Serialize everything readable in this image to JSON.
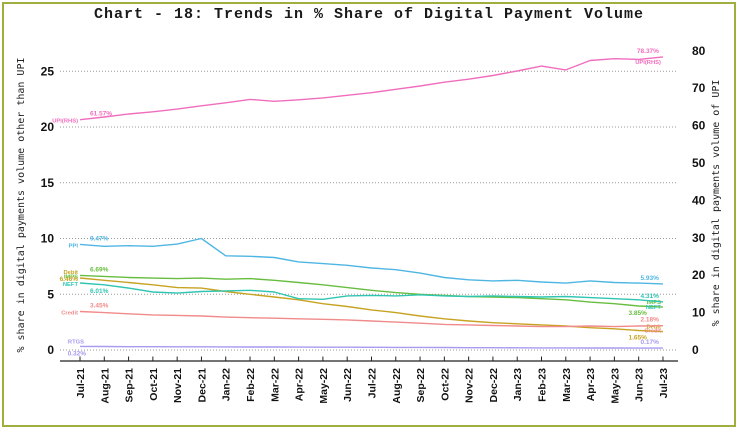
{
  "title": "Chart - 18: Trends in % Share of Digital Payment Volume",
  "left_axis": {
    "label": "% share in digital payments volume other than UPI",
    "ticks": [
      0,
      5,
      10,
      15,
      20,
      25
    ]
  },
  "right_axis": {
    "label": "% share in digital payments volume of UPI",
    "ticks": [
      0,
      10,
      20,
      30,
      40,
      50,
      60,
      70,
      80
    ]
  },
  "colors": {
    "frame_border": "#9fae3d",
    "grid": "#999999",
    "axis": "#222222"
  },
  "chart_data": {
    "type": "line",
    "title": "Chart - 18: Trends in % Share of Digital Payment Volume",
    "grid": "horizontal-dotted",
    "legend_position": "inline-end-labels",
    "left_ylim": [
      0,
      27
    ],
    "right_ylim": [
      0,
      85
    ],
    "x": [
      "Jul-21",
      "Aug-21",
      "Sep-21",
      "Oct-21",
      "Nov-21",
      "Dec-21",
      "Jan-22",
      "Feb-22",
      "Mar-22",
      "Apr-22",
      "May-22",
      "Jun-22",
      "Jul-22",
      "Aug-22",
      "Sep-22",
      "Oct-22",
      "Nov-22",
      "Dec-22",
      "Jan-23",
      "Feb-23",
      "Mar-23",
      "Apr-23",
      "May-23",
      "Jun-23",
      "Jul-23"
    ],
    "series": [
      {
        "name": "UPI(RHS)",
        "axis": "right",
        "color": "#f06ebe",
        "start_label": "61.57%",
        "end_label": "78.37%",
        "start_name": "UPI(RHS)",
        "end_name": "UPI(RHS)",
        "start_layout": "value-above-name-left",
        "end_layout": "value-above-name-below",
        "values": [
          61.57,
          62.3,
          63.1,
          63.7,
          64.4,
          65.3,
          66.1,
          67.0,
          66.5,
          66.9,
          67.4,
          68.1,
          68.8,
          69.7,
          70.6,
          71.6,
          72.4,
          73.4,
          74.6,
          75.9,
          74.9,
          77.4,
          77.9,
          77.7,
          78.37
        ]
      },
      {
        "name": "PPI",
        "axis": "left",
        "color": "#4fb6e3",
        "start_label": "9.47%",
        "end_label": "5.93%",
        "start_name": "PPI",
        "end_name": "",
        "start_layout": "value-above-name-left",
        "end_layout": "value-only",
        "values": [
          9.47,
          9.3,
          9.35,
          9.3,
          9.5,
          10.0,
          8.45,
          8.4,
          8.3,
          7.9,
          7.75,
          7.6,
          7.35,
          7.2,
          6.9,
          6.5,
          6.3,
          6.2,
          6.25,
          6.1,
          6.0,
          6.2,
          6.05,
          6.0,
          5.93
        ]
      },
      {
        "name": "IMPS",
        "axis": "left",
        "color": "#67bd3f",
        "start_label": "6.69%",
        "end_label": "3.85%",
        "start_name": "IMPS",
        "end_name": "IMPS",
        "start_layout": "value-above-name-left",
        "end_layout": "name-above-value-below",
        "values": [
          6.69,
          6.6,
          6.5,
          6.45,
          6.4,
          6.45,
          6.35,
          6.4,
          6.25,
          6.05,
          5.85,
          5.6,
          5.35,
          5.15,
          5.0,
          4.9,
          4.8,
          4.75,
          4.7,
          4.6,
          4.5,
          4.3,
          4.15,
          3.95,
          3.85
        ]
      },
      {
        "name": "Debit",
        "axis": "left",
        "color": "#c7a322",
        "start_label": "6.46%",
        "end_label": "1.65%",
        "start_name": "Debit",
        "end_name": "Debit",
        "start_layout": "value-left",
        "end_layout": "name-above-value-below",
        "values": [
          6.46,
          6.25,
          6.05,
          5.85,
          5.6,
          5.55,
          5.25,
          5.0,
          4.75,
          4.5,
          4.15,
          3.9,
          3.6,
          3.35,
          3.05,
          2.8,
          2.6,
          2.45,
          2.35,
          2.25,
          2.15,
          2.0,
          1.9,
          1.75,
          1.65
        ]
      },
      {
        "name": "NEFT",
        "axis": "left",
        "color": "#2fc5b2",
        "start_label": "6.01%",
        "end_label": "4.31%",
        "start_name": "NEFT",
        "end_name": "NEFT",
        "start_layout": "name-left-value-below",
        "end_layout": "value-above-name-below",
        "values": [
          6.01,
          5.85,
          5.55,
          5.2,
          5.1,
          5.25,
          5.3,
          5.35,
          5.2,
          4.6,
          4.55,
          4.85,
          4.9,
          4.85,
          4.95,
          4.85,
          4.8,
          4.85,
          4.8,
          4.75,
          4.8,
          4.7,
          4.6,
          4.5,
          4.31
        ]
      },
      {
        "name": "Credit",
        "axis": "left",
        "color": "#f18a8a",
        "start_label": "3.45%",
        "end_label": "2.18%",
        "start_name": "Credit",
        "end_name": "Credit",
        "start_layout": "value-above-name-left",
        "end_layout": "value-above-name-below",
        "values": [
          3.45,
          3.35,
          3.25,
          3.15,
          3.1,
          3.05,
          2.95,
          2.9,
          2.85,
          2.8,
          2.75,
          2.7,
          2.6,
          2.5,
          2.4,
          2.3,
          2.25,
          2.2,
          2.15,
          2.1,
          2.1,
          2.15,
          2.1,
          2.15,
          2.18
        ]
      },
      {
        "name": "RTGS",
        "axis": "left",
        "color": "#a79af0",
        "start_label": "0.32%",
        "end_label": "0.17%",
        "start_name": "RTGS",
        "end_name": "",
        "start_layout": "name-above-value-below",
        "end_layout": "value-only",
        "values": [
          0.32,
          0.31,
          0.3,
          0.3,
          0.29,
          0.29,
          0.28,
          0.27,
          0.27,
          0.26,
          0.25,
          0.25,
          0.24,
          0.23,
          0.23,
          0.22,
          0.21,
          0.21,
          0.2,
          0.19,
          0.19,
          0.18,
          0.18,
          0.17,
          0.17
        ]
      }
    ]
  }
}
